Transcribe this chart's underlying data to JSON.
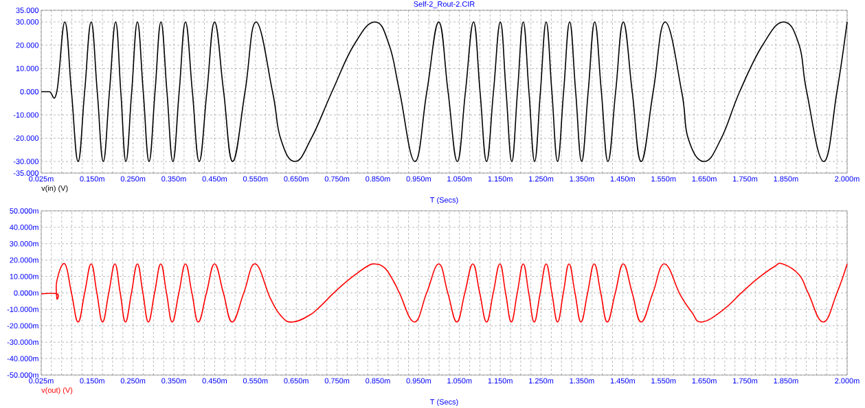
{
  "chart_data": [
    {
      "type": "line",
      "title": "Self-2_Rout-2.CIR",
      "xlabel": "T (Secs)",
      "grid": true,
      "xlim": [
        0.025,
        2.0
      ],
      "ylim": [
        -35,
        35
      ],
      "xticks": [
        {
          "value": 0.025,
          "label": "0.025m"
        },
        {
          "value": 0.05,
          "label": null
        },
        {
          "value": 0.075,
          "label": null
        },
        {
          "value": 0.1,
          "label": null
        },
        {
          "value": 0.125,
          "label": null
        },
        {
          "value": 0.15,
          "label": "0.150m"
        },
        {
          "value": 0.175,
          "label": null
        },
        {
          "value": 0.2,
          "label": null
        },
        {
          "value": 0.225,
          "label": null
        },
        {
          "value": 0.25,
          "label": "0.250m"
        },
        {
          "value": 0.275,
          "label": null
        },
        {
          "value": 0.3,
          "label": null
        },
        {
          "value": 0.325,
          "label": null
        },
        {
          "value": 0.35,
          "label": "0.350m"
        },
        {
          "value": 0.375,
          "label": null
        },
        {
          "value": 0.4,
          "label": null
        },
        {
          "value": 0.425,
          "label": null
        },
        {
          "value": 0.45,
          "label": "0.450m"
        },
        {
          "value": 0.475,
          "label": null
        },
        {
          "value": 0.5,
          "label": null
        },
        {
          "value": 0.525,
          "label": null
        },
        {
          "value": 0.55,
          "label": "0.550m"
        },
        {
          "value": 0.575,
          "label": null
        },
        {
          "value": 0.6,
          "label": null
        },
        {
          "value": 0.625,
          "label": null
        },
        {
          "value": 0.65,
          "label": "0.650m"
        },
        {
          "value": 0.675,
          "label": null
        },
        {
          "value": 0.7,
          "label": null
        },
        {
          "value": 0.725,
          "label": null
        },
        {
          "value": 0.75,
          "label": "0.750m"
        },
        {
          "value": 0.775,
          "label": null
        },
        {
          "value": 0.8,
          "label": null
        },
        {
          "value": 0.825,
          "label": null
        },
        {
          "value": 0.85,
          "label": "0.850m"
        },
        {
          "value": 0.875,
          "label": null
        },
        {
          "value": 0.9,
          "label": null
        },
        {
          "value": 0.925,
          "label": null
        },
        {
          "value": 0.95,
          "label": "0.950m"
        },
        {
          "value": 0.975,
          "label": null
        },
        {
          "value": 1.0,
          "label": null
        },
        {
          "value": 1.025,
          "label": null
        },
        {
          "value": 1.05,
          "label": "1.050m"
        },
        {
          "value": 1.075,
          "label": null
        },
        {
          "value": 1.1,
          "label": null
        },
        {
          "value": 1.125,
          "label": null
        },
        {
          "value": 1.15,
          "label": "1.150m"
        },
        {
          "value": 1.175,
          "label": null
        },
        {
          "value": 1.2,
          "label": null
        },
        {
          "value": 1.225,
          "label": null
        },
        {
          "value": 1.25,
          "label": "1.250m"
        },
        {
          "value": 1.275,
          "label": null
        },
        {
          "value": 1.3,
          "label": null
        },
        {
          "value": 1.325,
          "label": null
        },
        {
          "value": 1.35,
          "label": "1.350m"
        },
        {
          "value": 1.375,
          "label": null
        },
        {
          "value": 1.4,
          "label": null
        },
        {
          "value": 1.425,
          "label": null
        },
        {
          "value": 1.45,
          "label": "1.450m"
        },
        {
          "value": 1.475,
          "label": null
        },
        {
          "value": 1.5,
          "label": null
        },
        {
          "value": 1.525,
          "label": null
        },
        {
          "value": 1.55,
          "label": "1.550m"
        },
        {
          "value": 1.575,
          "label": null
        },
        {
          "value": 1.6,
          "label": null
        },
        {
          "value": 1.625,
          "label": null
        },
        {
          "value": 1.65,
          "label": "1.650m"
        },
        {
          "value": 1.675,
          "label": null
        },
        {
          "value": 1.7,
          "label": null
        },
        {
          "value": 1.725,
          "label": null
        },
        {
          "value": 1.75,
          "label": "1.750m"
        },
        {
          "value": 1.775,
          "label": null
        },
        {
          "value": 1.8,
          "label": null
        },
        {
          "value": 1.825,
          "label": null
        },
        {
          "value": 1.85,
          "label": "1.850m"
        },
        {
          "value": 1.875,
          "label": null
        },
        {
          "value": 1.9,
          "label": null
        },
        {
          "value": 1.925,
          "label": null
        },
        {
          "value": 1.95,
          "label": null
        },
        {
          "value": 1.975,
          "label": null
        },
        {
          "value": 2.0,
          "label": "2.000m"
        }
      ],
      "yticks": [
        {
          "value": 35,
          "label": "35.000"
        },
        {
          "value": 30,
          "label": "30.000"
        },
        {
          "value": 20,
          "label": "20.000"
        },
        {
          "value": 10,
          "label": "10.000"
        },
        {
          "value": 0,
          "label": "0.000"
        },
        {
          "value": -10,
          "label": "-10.000"
        },
        {
          "value": -20,
          "label": "-20.000"
        },
        {
          "value": -30,
          "label": "-30.000"
        },
        {
          "value": -35,
          "label": "-35.000"
        }
      ],
      "series": [
        {
          "name": "v(in) (V)",
          "color": "#000000",
          "x": [
            0.025,
            0.045,
            0.0632,
            0.0828,
            0.0991,
            0.1154,
            0.1314,
            0.1474,
            0.1623,
            0.1771,
            0.1922,
            0.2073,
            0.22,
            0.2326,
            0.2467,
            0.2607,
            0.275,
            0.2893,
            0.3039,
            0.3184,
            0.3331,
            0.3477,
            0.3631,
            0.3785,
            0.3954,
            0.4122,
            0.431,
            0.4498,
            0.472,
            0.4942,
            0.5245,
            0.5514,
            0.5918,
            0.6114,
            0.6467,
            0.6871,
            0.7376,
            0.791,
            0.8427,
            0.8779,
            0.9033,
            0.9408,
            0.97,
            0.9992,
            1.022,
            1.0447,
            1.0646,
            1.0844,
            1.1004,
            1.1164,
            1.1333,
            1.1501,
            1.1642,
            1.1782,
            1.1922,
            1.2062,
            1.2202,
            1.2342,
            1.2483,
            1.2624,
            1.2764,
            1.2904,
            1.3052,
            1.32,
            1.3347,
            1.3494,
            1.3654,
            1.3814,
            1.3977,
            1.4139,
            1.4327,
            1.4514,
            1.4733,
            1.4952,
            1.5247,
            1.5541,
            1.5946,
            1.6103,
            1.6495,
            1.6917,
            1.7366,
            1.7927,
            1.8443,
            1.8825,
            1.9009,
            1.9425,
            1.975,
            2.0
          ],
          "values": [
            0,
            0,
            0,
            30,
            0,
            -30,
            0,
            30,
            0,
            -30,
            0,
            30,
            0,
            -30,
            0,
            30,
            0,
            -30,
            0,
            30,
            0,
            -30,
            0,
            30,
            0,
            -30,
            0,
            30,
            0,
            -30,
            0,
            30,
            0,
            -20,
            -30,
            -20,
            0,
            20,
            30,
            20,
            0,
            -30,
            0,
            30,
            0,
            -30,
            0,
            30,
            0,
            -30,
            0,
            30,
            0,
            -30,
            0,
            30,
            0,
            -30,
            0,
            30,
            0,
            -30,
            0,
            30,
            0,
            -30,
            0,
            30,
            0,
            -30,
            0,
            30,
            0,
            -30,
            0,
            30,
            0,
            -20,
            -30,
            -20,
            0,
            20,
            30,
            20,
            0,
            -30,
            0,
            30
          ]
        }
      ]
    },
    {
      "type": "line",
      "xlabel": "T (Secs)",
      "grid": true,
      "xlim": [
        0.025,
        2.0
      ],
      "ylim": [
        -50,
        50
      ],
      "xticks": [
        {
          "value": 0.025,
          "label": "0.025m"
        },
        {
          "value": 0.05,
          "label": null
        },
        {
          "value": 0.075,
          "label": null
        },
        {
          "value": 0.1,
          "label": null
        },
        {
          "value": 0.125,
          "label": null
        },
        {
          "value": 0.15,
          "label": "0.150m"
        },
        {
          "value": 0.175,
          "label": null
        },
        {
          "value": 0.2,
          "label": null
        },
        {
          "value": 0.225,
          "label": null
        },
        {
          "value": 0.25,
          "label": "0.250m"
        },
        {
          "value": 0.275,
          "label": null
        },
        {
          "value": 0.3,
          "label": null
        },
        {
          "value": 0.325,
          "label": null
        },
        {
          "value": 0.35,
          "label": "0.350m"
        },
        {
          "value": 0.375,
          "label": null
        },
        {
          "value": 0.4,
          "label": null
        },
        {
          "value": 0.425,
          "label": null
        },
        {
          "value": 0.45,
          "label": "0.450m"
        },
        {
          "value": 0.475,
          "label": null
        },
        {
          "value": 0.5,
          "label": null
        },
        {
          "value": 0.525,
          "label": null
        },
        {
          "value": 0.55,
          "label": "0.550m"
        },
        {
          "value": 0.575,
          "label": null
        },
        {
          "value": 0.6,
          "label": null
        },
        {
          "value": 0.625,
          "label": null
        },
        {
          "value": 0.65,
          "label": "0.650m"
        },
        {
          "value": 0.675,
          "label": null
        },
        {
          "value": 0.7,
          "label": null
        },
        {
          "value": 0.725,
          "label": null
        },
        {
          "value": 0.75,
          "label": "0.750m"
        },
        {
          "value": 0.775,
          "label": null
        },
        {
          "value": 0.8,
          "label": null
        },
        {
          "value": 0.825,
          "label": null
        },
        {
          "value": 0.85,
          "label": "0.850m"
        },
        {
          "value": 0.875,
          "label": null
        },
        {
          "value": 0.9,
          "label": null
        },
        {
          "value": 0.925,
          "label": null
        },
        {
          "value": 0.95,
          "label": "0.950m"
        },
        {
          "value": 0.975,
          "label": null
        },
        {
          "value": 1.0,
          "label": null
        },
        {
          "value": 1.025,
          "label": null
        },
        {
          "value": 1.05,
          "label": "1.050m"
        },
        {
          "value": 1.075,
          "label": null
        },
        {
          "value": 1.1,
          "label": null
        },
        {
          "value": 1.125,
          "label": null
        },
        {
          "value": 1.15,
          "label": "1.150m"
        },
        {
          "value": 1.175,
          "label": null
        },
        {
          "value": 1.2,
          "label": null
        },
        {
          "value": 1.225,
          "label": null
        },
        {
          "value": 1.25,
          "label": "1.250m"
        },
        {
          "value": 1.275,
          "label": null
        },
        {
          "value": 1.3,
          "label": null
        },
        {
          "value": 1.325,
          "label": null
        },
        {
          "value": 1.35,
          "label": "1.350m"
        },
        {
          "value": 1.375,
          "label": null
        },
        {
          "value": 1.4,
          "label": null
        },
        {
          "value": 1.425,
          "label": null
        },
        {
          "value": 1.45,
          "label": "1.450m"
        },
        {
          "value": 1.475,
          "label": null
        },
        {
          "value": 1.5,
          "label": null
        },
        {
          "value": 1.525,
          "label": null
        },
        {
          "value": 1.55,
          "label": "1.550m"
        },
        {
          "value": 1.575,
          "label": null
        },
        {
          "value": 1.6,
          "label": null
        },
        {
          "value": 1.625,
          "label": null
        },
        {
          "value": 1.65,
          "label": "1.650m"
        },
        {
          "value": 1.675,
          "label": null
        },
        {
          "value": 1.7,
          "label": null
        },
        {
          "value": 1.725,
          "label": null
        },
        {
          "value": 1.75,
          "label": "1.750m"
        },
        {
          "value": 1.775,
          "label": null
        },
        {
          "value": 1.8,
          "label": null
        },
        {
          "value": 1.825,
          "label": null
        },
        {
          "value": 1.85,
          "label": "1.850m"
        },
        {
          "value": 1.875,
          "label": null
        },
        {
          "value": 1.9,
          "label": null
        },
        {
          "value": 1.925,
          "label": null
        },
        {
          "value": 1.95,
          "label": null
        },
        {
          "value": 1.975,
          "label": null
        },
        {
          "value": 2.0,
          "label": "2.000m"
        }
      ],
      "yticks": [
        {
          "value": 50,
          "label": "50.000m"
        },
        {
          "value": 40,
          "label": "40.000m"
        },
        {
          "value": 30,
          "label": "30.000m"
        },
        {
          "value": 20,
          "label": "20.000m"
        },
        {
          "value": 10,
          "label": "10.000m"
        },
        {
          "value": 0,
          "label": "0.000m"
        },
        {
          "value": -10,
          "label": "-10.000m"
        },
        {
          "value": -20,
          "label": "-20.000m"
        },
        {
          "value": -30,
          "label": "-30.000m"
        },
        {
          "value": -40,
          "label": "-40.000m"
        },
        {
          "value": -50,
          "label": "-50.000m"
        }
      ],
      "series": [
        {
          "name": "v(out) (V)",
          "color": "#ff0000",
          "x": [
            0.025,
            0.0632,
            0.0633,
            0.0634,
            0.0828,
            0.0991,
            0.1154,
            0.1314,
            0.1474,
            0.1614,
            0.1753,
            0.1905,
            0.2056,
            0.2186,
            0.2315,
            0.2461,
            0.2607,
            0.2742,
            0.2876,
            0.3028,
            0.318,
            0.332,
            0.346,
            0.3623,
            0.3785,
            0.3943,
            0.41,
            0.4299,
            0.4498,
            0.4714,
            0.493,
            0.5214,
            0.5497,
            0.5861,
            0.6142,
            0.6412,
            0.6816,
            0.7096,
            0.7376,
            0.7657,
            0.7938,
            0.8218,
            0.8415,
            0.8668,
            0.8892,
            0.9033,
            0.9397,
            0.9695,
            0.9992,
            1.0214,
            1.0435,
            1.0631,
            1.0827,
            1.0996,
            1.1164,
            1.1327,
            1.149,
            1.163,
            1.177,
            1.1916,
            1.2062,
            1.2197,
            1.2332,
            1.2478,
            1.2624,
            1.2764,
            1.2904,
            1.3045,
            1.3185,
            1.3331,
            1.3477,
            1.364,
            1.3802,
            1.3962,
            1.4122,
            1.4318,
            1.4514,
            1.4733,
            1.4952,
            1.5239,
            1.5525,
            1.5907,
            1.6187,
            1.6439,
            1.6972,
            1.7393,
            1.7814,
            1.8208,
            1.842,
            1.8825,
            1.9049,
            1.9413,
            1.975,
            2.0
          ],
          "values": [
            -0.5,
            -0.5,
            -3.4,
            7.5,
            17.7,
            0,
            -17.7,
            0,
            17.7,
            0,
            -17.7,
            0,
            17.7,
            0,
            -17.7,
            0,
            17.7,
            0,
            -17.7,
            0,
            17.7,
            0,
            -17.7,
            0,
            17.7,
            0,
            -17.7,
            0,
            17.7,
            0,
            -17.7,
            0,
            17.7,
            -3.1,
            -14.4,
            -17.7,
            -13.7,
            -8.0,
            -1.0,
            5.4,
            11.0,
            15.9,
            17.7,
            15.2,
            6.8,
            -0.3,
            -17.7,
            0,
            17.7,
            0,
            -17.7,
            0,
            17.7,
            0,
            -17.7,
            0,
            17.7,
            0,
            -17.7,
            0,
            17.7,
            0,
            -17.7,
            0,
            17.7,
            0,
            -17.7,
            0,
            17.7,
            0,
            -17.7,
            0,
            17.7,
            0,
            -17.7,
            0,
            17.7,
            0,
            -17.7,
            0,
            17.7,
            -1.0,
            -11.5,
            -17.7,
            -10.1,
            -0.3,
            8.9,
            15.9,
            17.7,
            11.0,
            -0.3,
            -17.7,
            0,
            17.7
          ]
        }
      ]
    }
  ]
}
